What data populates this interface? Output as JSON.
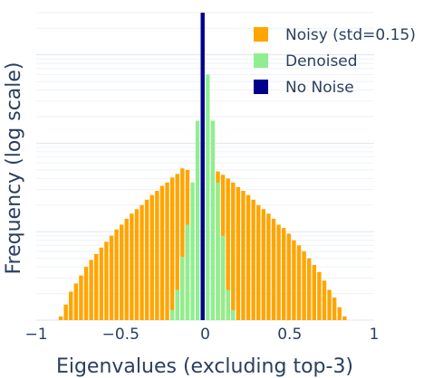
{
  "chart_data": {
    "type": "bar",
    "title": "",
    "xlabel": "Eigenvalues (excluding top-3)",
    "ylabel": "Frequency (log scale)",
    "xlim": [
      -1,
      1
    ],
    "y_scale": "log",
    "ylim": [
      1,
      3000
    ],
    "grid": "horizontal",
    "legend_position": "top-right",
    "x_ticks": [
      {
        "value": -1,
        "label": "−1"
      },
      {
        "value": -0.5,
        "label": "−0.5"
      },
      {
        "value": 0,
        "label": "0"
      },
      {
        "value": 0.5,
        "label": "0.5"
      },
      {
        "value": 1,
        "label": "1"
      }
    ],
    "series": [
      {
        "name": "Noisy (std=0.15)",
        "color": "#FFA500",
        "bin_width": 0.03,
        "x": [
          -0.855,
          -0.825,
          -0.795,
          -0.765,
          -0.735,
          -0.705,
          -0.675,
          -0.645,
          -0.615,
          -0.585,
          -0.555,
          -0.525,
          -0.495,
          -0.465,
          -0.435,
          -0.405,
          -0.375,
          -0.345,
          -0.315,
          -0.285,
          -0.255,
          -0.225,
          -0.195,
          -0.165,
          -0.135,
          -0.105,
          -0.075,
          -0.045,
          -0.015,
          0.015,
          0.045,
          0.075,
          0.105,
          0.135,
          0.165,
          0.195,
          0.225,
          0.255,
          0.285,
          0.315,
          0.345,
          0.375,
          0.405,
          0.435,
          0.465,
          0.495,
          0.525,
          0.555,
          0.585,
          0.615,
          0.645,
          0.675,
          0.705,
          0.735,
          0.765,
          0.795,
          0.825
        ],
        "values": [
          1.1,
          1.5,
          2.1,
          2.6,
          3.2,
          4.0,
          4.8,
          5.6,
          6.6,
          7.7,
          9.0,
          10.6,
          12,
          14,
          16,
          18,
          20,
          23,
          26,
          29,
          33,
          36,
          41,
          45,
          52,
          50,
          0,
          0,
          0,
          0,
          0,
          48,
          44,
          40,
          36,
          32,
          29,
          26,
          23,
          20,
          18,
          16,
          14,
          12,
          11,
          9.5,
          8.0,
          7.0,
          6.0,
          5.0,
          4.2,
          3.5,
          2.8,
          2.2,
          1.8,
          1.4,
          1.1
        ]
      },
      {
        "name": "Denoised",
        "color": "#90EE90",
        "bin_width": 0.03,
        "x": [
          -0.195,
          -0.165,
          -0.135,
          -0.105,
          -0.075,
          -0.045,
          -0.015,
          0.015,
          0.045,
          0.075,
          0.105,
          0.135,
          0.165
        ],
        "values": [
          1.3,
          2.2,
          5.2,
          12,
          36,
          180,
          600,
          600,
          180,
          36,
          9,
          2.2,
          1.3
        ]
      },
      {
        "name": "No Noise",
        "color": "#00008B",
        "bin_width": 0.03,
        "x": [
          -0.015
        ],
        "values": [
          3000
        ]
      }
    ]
  }
}
